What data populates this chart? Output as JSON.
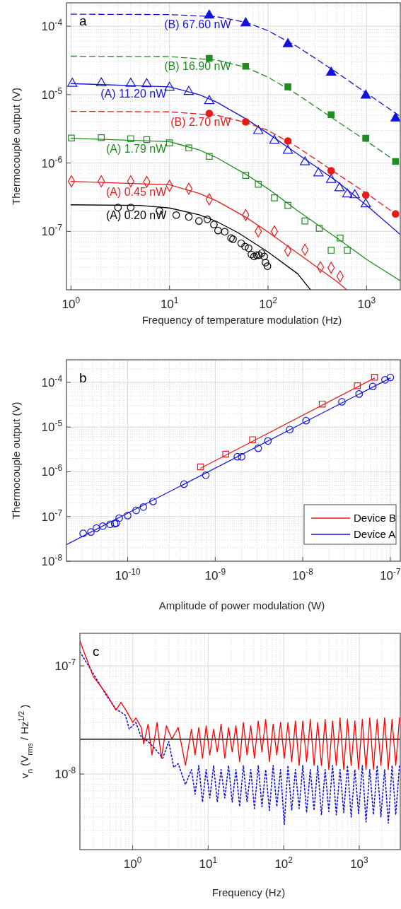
{
  "chart_data": [
    {
      "type": "scatter",
      "xlabel": "Frequency of temperature modulation (Hz)",
      "ylabel": "Thermocouple output (V)",
      "annotations": [
        "a"
      ],
      "log": "xy",
      "grid": true,
      "legend": false,
      "xlim": [
        0.9,
        2200
      ],
      "ylim": [
        1.4e-08,
        0.00022
      ],
      "xticks": [
        {
          "value": 1,
          "label": "10$^{0}$"
        },
        {
          "value": 10,
          "label": "10$^{1}$"
        },
        {
          "value": 100,
          "label": "10$^{2}$"
        },
        {
          "value": 1000,
          "label": "10$^{3}$"
        }
      ],
      "yticks": [
        {
          "value": 1e-07,
          "label": "10$^{-7}$"
        },
        {
          "value": 1e-06,
          "label": "10$^{-6}$"
        },
        {
          "value": 1e-05,
          "label": "10$^{-5}$"
        },
        {
          "value": 0.0001,
          "label": "10$^{-4}$"
        }
      ],
      "series": [
        {
          "type": "line",
          "name": "(B) 67.60 nW",
          "color": "#1414d8",
          "line_style": "dashed",
          "x": [
            1,
            10,
            30,
            60,
            100,
            200,
            500,
            1000,
            2200
          ],
          "values": [
            0.00015,
            0.000148,
            0.000138,
            0.000114,
            8.6e-05,
            5e-05,
            2.1e-05,
            1.05e-05,
            4.8e-06
          ]
        },
        {
          "color": "#1414d8",
          "marker": "triangle",
          "x": [
            25.3,
            59.3,
            159,
            437,
            982,
            1970
          ],
          "values": [
            0.000144,
            0.000111,
            5.5e-05,
            2.1e-05,
            9.7e-06,
            4.5e-06
          ]
        },
        {
          "type": "line",
          "name": "(B) 16.90 nW",
          "color": "#1e8c1e",
          "line_style": "dashed",
          "x": [
            1,
            10,
            30,
            60,
            100,
            200,
            500,
            1000,
            2200
          ],
          "values": [
            3.65e-05,
            3.6e-05,
            3.2e-05,
            2.5e-05,
            1.8e-05,
            1e-05,
            4.1e-06,
            2.1e-06,
            9.5e-07
          ]
        },
        {
          "color": "#1e8c1e",
          "marker": "square",
          "x": [
            25.3,
            59.3,
            159,
            437,
            982,
            1970
          ],
          "values": [
            3.4e-05,
            2.6e-05,
            1.3e-05,
            5.1e-06,
            2.3e-06,
            1.05e-06
          ]
        },
        {
          "type": "line",
          "name": "(A) 11.20 nW",
          "color": "#1414d8",
          "line_style": "solid",
          "x": [
            1,
            10,
            20,
            30,
            60,
            100,
            200,
            500,
            1000,
            2200
          ],
          "values": [
            1.45e-05,
            1.3e-05,
            1e-05,
            7.8e-06,
            4.4e-06,
            2.7e-06,
            1.35e-06,
            5.4e-07,
            2.4e-07,
            9e-08
          ]
        },
        {
          "color": "#1414d8",
          "marker": "triangle",
          "x": [
            1.03,
            2.03,
            4.04,
            5.87,
            10,
            15.7,
            25.3,
            79.6,
            116,
            159,
            237,
            325,
            437,
            532,
            637,
            759,
            982
          ],
          "values": [
            1.45e-05,
            1.47e-05,
            1.45e-05,
            1.43e-05,
            1.27e-05,
            1.1e-05,
            8.1e-06,
            2.95e-06,
            2.13e-06,
            1.52e-06,
            1.03e-06,
            7.1e-07,
            5.7e-07,
            4.3e-07,
            3.5e-07,
            3.4e-07,
            2.5e-07
          ]
        },
        {
          "type": "line",
          "name": "(B) 2.70 nW",
          "color": "#e51c1c",
          "line_style": "dashed",
          "x": [
            1,
            10,
            30,
            60,
            100,
            200,
            500,
            1000,
            2200
          ],
          "values": [
            5.7e-06,
            5.6e-06,
            5e-06,
            3.9e-06,
            3e-06,
            1.7e-06,
            7e-07,
            3.6e-07,
            1.6e-07
          ]
        },
        {
          "color": "#e51c1c",
          "marker": "circle",
          "x": [
            25.3,
            59.3,
            159,
            437,
            982,
            1970
          ],
          "values": [
            5.3e-06,
            4e-06,
            2.1e-06,
            7.7e-07,
            3.4e-07,
            1.8e-07
          ]
        },
        {
          "type": "line",
          "name": "(A) 1.79 nW",
          "color": "#1e8c1e",
          "line_style": "solid",
          "x": [
            1,
            10,
            20,
            30,
            60,
            100,
            200,
            500,
            1000,
            2200
          ],
          "values": [
            2.3e-06,
            2.05e-06,
            1.55e-06,
            1.2e-06,
            6.8e-07,
            4.2e-07,
            2e-07,
            8e-08,
            3.9e-08,
            1.9e-08
          ]
        },
        {
          "color": "#1e8c1e",
          "marker": "square",
          "x": [
            1.01,
            2.03,
            4.04,
            5.87,
            10,
            15.7,
            25.3,
            59.3,
            79.6,
            116,
            159,
            237,
            331,
            437,
            539,
            637
          ],
          "values": [
            2.32e-06,
            2.35e-06,
            2.27e-06,
            2.2e-06,
            1.97e-06,
            1.66e-06,
            1.25e-06,
            6.6e-07,
            4.9e-07,
            3.1e-07,
            2.4e-07,
            1.42e-07,
            1.11e-07,
            5.3e-08,
            8e-08,
            5.3e-08
          ]
        },
        {
          "type": "line",
          "name": "(A) 0.45 nW",
          "color": "#e51c1c",
          "line_style": "solid",
          "x": [
            1,
            10,
            20,
            30,
            60,
            100,
            200,
            500,
            630
          ],
          "values": [
            5.4e-07,
            4.8e-07,
            3.6e-07,
            2.8e-07,
            1.6e-07,
            9.8e-08,
            4.8e-08,
            1.85e-08,
            1.4e-08
          ]
        },
        {
          "color": "#e51c1c",
          "marker": "diamond",
          "x": [
            1.01,
            2.03,
            4.04,
            5.87,
            10,
            15.7,
            25.3,
            59.3,
            79.6,
            116,
            159,
            237,
            340,
            437,
            539
          ],
          "values": [
            5.4e-07,
            5.4e-07,
            5.4e-07,
            5.3e-07,
            4.65e-07,
            4.2e-07,
            2.95e-07,
            1.73e-07,
            1e-07,
            1e-07,
            5.2e-08,
            5.4e-08,
            3e-08,
            2.95e-08,
            2.2e-08
          ]
        },
        {
          "type": "line",
          "name": "(A) 0.20 nW",
          "color": "#000000",
          "line_style": "solid",
          "x": [
            1,
            5,
            10,
            20,
            30,
            50,
            100,
            200,
            270
          ],
          "values": [
            2.45e-07,
            2.4e-07,
            2.2e-07,
            1.75e-07,
            1.4e-07,
            9.5e-08,
            5e-08,
            2.4e-08,
            1.4e-08
          ]
        },
        {
          "color": "#000000",
          "marker": "circle",
          "x": [
            3,
            4.04,
            7.9,
            11.7,
            15.7,
            19.9,
            24.2,
            28.2,
            31.1,
            36.3,
            42.1,
            44.1,
            53.4,
            58.4,
            63.5,
            67.8,
            72.2,
            76.5,
            81,
            86.3,
            91.5,
            94.3,
            98.6
          ],
          "values": [
            2.24e-07,
            2.24e-07,
            2e-07,
            1.73e-07,
            1.63e-07,
            1.42e-07,
            1.5e-07,
            1.26e-07,
            1.03e-07,
            9.9e-08,
            8e-08,
            7.7e-08,
            6.7e-08,
            6e-08,
            5.7e-08,
            4.6e-08,
            4.3e-08,
            4.5e-08,
            4.5e-08,
            4.8e-08,
            4.3e-08,
            3.5e-08,
            3.1e-08
          ]
        }
      ]
    },
    {
      "type": "scatter",
      "xlabel": "Amplitude of power modulation (W)",
      "ylabel": "Thermocouple output (V)",
      "annotations": [
        "b"
      ],
      "log": "xy",
      "grid": true,
      "legend": "bottom right",
      "xlim": [
        2e-11,
        1.3e-07
      ],
      "ylim": [
        1e-08,
        0.00032
      ],
      "xticks": [
        {
          "value": 1e-10,
          "label": "10$^{-10}$"
        },
        {
          "value": 1e-09,
          "label": "10$^{-9}$"
        },
        {
          "value": 1e-08,
          "label": "10$^{-8}$"
        },
        {
          "value": 1e-07,
          "label": "10$^{-7}$"
        }
      ],
      "yticks": [
        {
          "value": 1e-08,
          "label": "10$^{-8}$"
        },
        {
          "value": 1e-07,
          "label": "10$^{-7}$"
        },
        {
          "value": 1e-06,
          "label": "10$^{-6}$"
        },
        {
          "value": 1e-05,
          "label": "10$^{-5}$"
        },
        {
          "value": 0.0001,
          "label": "10$^{-4}$"
        }
      ],
      "series": [
        {
          "type": "line",
          "name": "Device B",
          "color": "#e51c1c",
          "line_style": "solid",
          "x": [
            6.8e-10,
            6.6e-08
          ],
          "values": [
            1.2e-06,
            0.000125
          ]
        },
        {
          "type": "line",
          "name": "Device A",
          "color": "#1414d8",
          "line_style": "solid",
          "x": [
            2e-11,
            1e-07
          ],
          "values": [
            2.35e-08,
            0.000125
          ]
        },
        {
          "color": "#e51c1c",
          "marker": "square",
          "x": [
            6.8e-10,
            1.32e-09,
            2.67e-09,
            1.67e-08,
            4.2e-08,
            6.6e-08
          ],
          "values": [
            1.29e-06,
            2.48e-06,
            5.2e-06,
            3.27e-05,
            8.4e-05,
            0.00013
          ]
        },
        {
          "color": "#1414d8",
          "marker": "circle",
          "x": [
            3.1e-11,
            3.8e-11,
            4.4e-11,
            5.2e-11,
            6.3e-11,
            7.1e-11,
            7.4e-11,
            8e-11,
            1e-10,
            1.25e-10,
            1.51e-10,
            1.95e-10,
            4.4e-10,
            7.8e-10,
            1.79e-09,
            2e-09,
            3.1e-09,
            4e-09,
            7.1e-09,
            1.09e-08,
            2.8e-08,
            4.4e-08,
            6.3e-08,
            8.7e-08,
            1e-07
          ],
          "values": [
            4.2e-08,
            4.5e-08,
            5.5e-08,
            6.1e-08,
            6.7e-08,
            6.9e-08,
            7.1e-08,
            9.2e-08,
            1.05e-07,
            1.37e-07,
            1.63e-07,
            2.17e-07,
            5.3e-07,
            8.4e-07,
            2.17e-06,
            2.17e-06,
            3.36e-06,
            4.9e-06,
            8.8e-06,
            1.39e-05,
            3.68e-05,
            5.5e-05,
            8.1e-05,
            0.000114,
            0.000129
          ]
        }
      ]
    },
    {
      "type": "line",
      "xlabel": "Frequency (Hz)",
      "ylabel": "v$_{n}$ (V$_{rms}$ / Hz$^{1/2}$)",
      "annotations": [
        "c"
      ],
      "log": "xy",
      "grid": true,
      "legend": false,
      "xlim": [
        0.2,
        3500
      ],
      "ylim": [
        2e-09,
        2e-07
      ],
      "xticks": [
        {
          "value": 1,
          "label": "10$^{0}$"
        },
        {
          "value": 10,
          "label": "10$^{1}$"
        },
        {
          "value": 100,
          "label": "10$^{2}$"
        },
        {
          "value": 1000,
          "label": "10$^{3}$"
        }
      ],
      "yticks": [
        {
          "value": 1e-08,
          "label": "10$^{-8}$"
        },
        {
          "value": 1e-07,
          "label": "10$^{-7}$"
        }
      ],
      "ref_lines": [
        {
          "axis": "y",
          "value": 2.1e-08,
          "color": "#000000"
        }
      ],
      "series": [
        {
          "color": "#1414d8",
          "line_style": "dotted",
          "x": [
            0.2,
            0.3,
            0.45,
            0.6,
            0.8,
            0.9,
            1.1,
            1.3,
            1.6,
            2.0,
            2.5,
            3.0,
            3.5,
            4,
            5,
            6,
            6.7,
            7.5,
            8.4,
            9.4,
            10.5,
            11.8,
            13.2,
            14.8,
            16.6,
            18.6,
            20.8,
            23.3,
            26.1,
            29.2,
            32.7,
            36.6,
            41,
            46,
            51.5,
            57.7,
            64.6,
            72.4,
            81,
            90.8,
            101.7,
            113.9,
            127.6,
            142.9,
            160,
            179,
            201,
            225,
            252,
            282,
            316,
            354,
            396,
            444,
            497,
            557,
            624,
            699,
            782,
            876,
            981,
            1099,
            1231,
            1379,
            1544,
            1729,
            1937,
            2169,
            2430,
            2721,
            3048,
            3414
          ],
          "values": [
            1.35e-07,
            8.5e-08,
            5.3e-08,
            4e-08,
            3.5e-08,
            2.6e-08,
            3e-08,
            2.2e-08,
            2e-08,
            1.7e-08,
            1.4e-08,
            2e-08,
            1.15e-08,
            1.25e-08,
            8e-09,
            1.1e-08,
            6.5e-09,
            1.2e-08,
            5.5e-09,
            1.1e-08,
            6e-09,
            1.2e-08,
            5.5e-09,
            1.1e-08,
            6e-09,
            1.2e-08,
            5.5e-09,
            1.1e-08,
            5e-09,
            1.2e-08,
            5.5e-09,
            1.1e-08,
            4.8e-09,
            1.2e-08,
            5e-09,
            1.1e-08,
            4.6e-09,
            1.2e-08,
            5e-09,
            1.1e-08,
            3.4e-09,
            1.2e-08,
            4.6e-09,
            1.1e-08,
            4.8e-09,
            1.2e-08,
            4.4e-09,
            1.1e-08,
            4.6e-09,
            1.2e-08,
            4.2e-09,
            1.1e-08,
            4.5e-09,
            1.2e-08,
            4.2e-09,
            1.1e-08,
            4.4e-09,
            1.2e-08,
            4e-09,
            1.1e-08,
            4.3e-09,
            1.2e-08,
            3.6e-09,
            1.1e-08,
            4.2e-09,
            1.2e-08,
            4e-09,
            1.1e-08,
            3.5e-09,
            1.2e-08,
            4.2e-09,
            1.2e-08
          ]
        },
        {
          "color": "#ff0000",
          "line_style": "solid",
          "x": [
            0.2,
            0.3,
            0.45,
            0.6,
            0.7,
            0.85,
            1.0,
            1.1,
            1.3,
            1.4,
            1.6,
            1.8,
            2.1,
            2.4,
            2.8,
            3.3,
            4,
            5,
            6,
            6.7,
            7.5,
            8.4,
            9.4,
            10.5,
            11.8,
            13.2,
            14.8,
            16.6,
            18.6,
            20.8,
            23.3,
            26.1,
            29.2,
            32.7,
            36.6,
            41,
            46,
            51.5,
            57.7,
            64.6,
            72.4,
            81,
            90.8,
            101.7,
            113.9,
            127.6,
            142.9,
            160,
            179,
            201,
            225,
            252,
            282,
            316,
            354,
            396,
            444,
            497,
            557,
            624,
            699,
            782,
            876,
            981,
            1099,
            1231,
            1379,
            1544,
            1729,
            1937,
            2169,
            2430,
            2721,
            3048,
            3414
          ],
          "values": [
            1.7e-07,
            8e-08,
            5.5e-08,
            3.9e-08,
            4.6e-08,
            3.7e-08,
            3e-08,
            3.3e-08,
            2.7e-08,
            1.9e-08,
            2.9e-08,
            1.5e-08,
            3e-08,
            1.4e-08,
            2.8e-08,
            2.1e-08,
            2.7e-08,
            1.2e-08,
            2.6e-08,
            1.5e-08,
            2.7e-08,
            1.4e-08,
            2.8e-08,
            1.5e-08,
            2.6e-08,
            1.6e-08,
            2.9e-08,
            1.4e-08,
            2.7e-08,
            1.6e-08,
            2.8e-08,
            1.3e-08,
            3e-08,
            1.5e-08,
            2.8e-08,
            1.4e-08,
            3.1e-08,
            1.6e-08,
            3.2e-08,
            1.3e-08,
            2.9e-08,
            1.5e-08,
            3e-08,
            1.4e-08,
            3e-08,
            1.3e-08,
            3.1e-08,
            1.2e-08,
            3.1e-08,
            1.3e-08,
            3.2e-08,
            1.2e-08,
            3e-08,
            1.2e-08,
            3.2e-08,
            1.1e-08,
            3.1e-08,
            1.2e-08,
            3.3e-08,
            1.1e-08,
            3.2e-08,
            1.2e-08,
            3.1e-08,
            1.1e-08,
            3.2e-08,
            1.1e-08,
            3.3e-08,
            1.1e-08,
            3.2e-08,
            1.2e-08,
            3.3e-08,
            1.1e-08,
            3.2e-08,
            1.2e-08,
            3.3e-08
          ]
        }
      ]
    }
  ]
}
